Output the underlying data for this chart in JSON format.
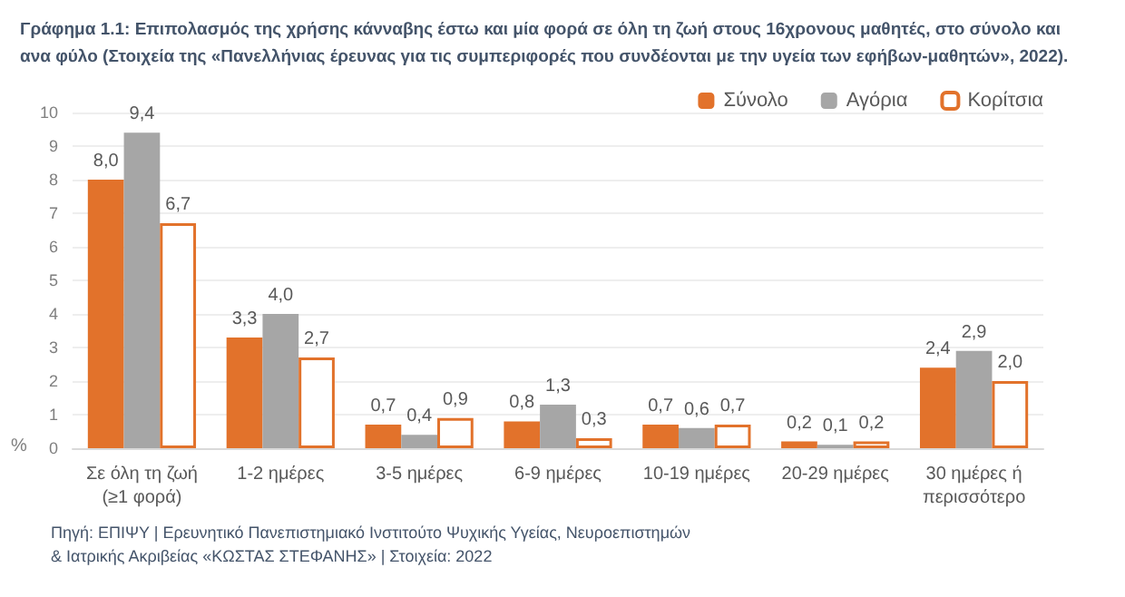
{
  "chart_data": {
    "type": "bar",
    "title": "Γράφημα 1.1: Επιπολασμός της χρήσης κάνναβης έστω και μία φορά σε όλη τη ζωή στους 16χρονους μαθητές, στο σύνολο και\nανα φύλο (Στοιχεία της «Πανελλήνιας έρευνας για τις συμπεριφορές που συνδέονται με την υγεία των εφήβων-μαθητών», 2022).",
    "ylabel": "%",
    "categories": [
      "Σε όλη τη ζωή\n(≥1 φορά)",
      "1-2 ημέρες",
      "3-5 ημέρες",
      "6-9 ημέρες",
      "10-19 ημέρες",
      "20-29 ημέρες",
      "30 ημέρες ή\nπερισσότερο"
    ],
    "series": [
      {
        "name": "Σύνολο",
        "color": "#e2722b",
        "values": [
          8.0,
          3.3,
          0.7,
          0.8,
          0.7,
          0.2,
          2.4
        ],
        "value_labels": [
          "8,0",
          "3,3",
          "0,7",
          "0,8",
          "0,7",
          "0,2",
          "2,4"
        ]
      },
      {
        "name": "Αγόρια",
        "color": "#a6a6a6",
        "values": [
          9.4,
          4.0,
          0.4,
          1.3,
          0.6,
          0.1,
          2.9
        ],
        "value_labels": [
          "9,4",
          "4,0",
          "0,4",
          "1,3",
          "0,6",
          "0,1",
          "2,9"
        ]
      },
      {
        "name": "Κορίτσια",
        "color": "#ffffff",
        "values": [
          6.7,
          2.7,
          0.9,
          0.3,
          0.7,
          0.2,
          2.0
        ],
        "value_labels": [
          "6,7",
          "2,7",
          "0,9",
          "0,3",
          "0,7",
          "0,2",
          "2,0"
        ]
      }
    ],
    "ylim": [
      0,
      10
    ],
    "yticks": [
      0,
      1,
      2,
      3,
      4,
      5,
      6,
      7,
      8,
      9,
      10
    ],
    "grid": "y",
    "legend": "top right",
    "annotations": [
      "Πηγή: ΕΠΙΨΥ | Ερευνητικό Πανεπιστημιακό Ινστιτούτο Ψυχικής Υγείας, Νευροεπιστημών\n& Ιατρικής Ακριβείας «ΚΩΣΤΑΣ ΣΤΕΦΑΝΗΣ» | Στοιχεία: 2022"
    ]
  }
}
